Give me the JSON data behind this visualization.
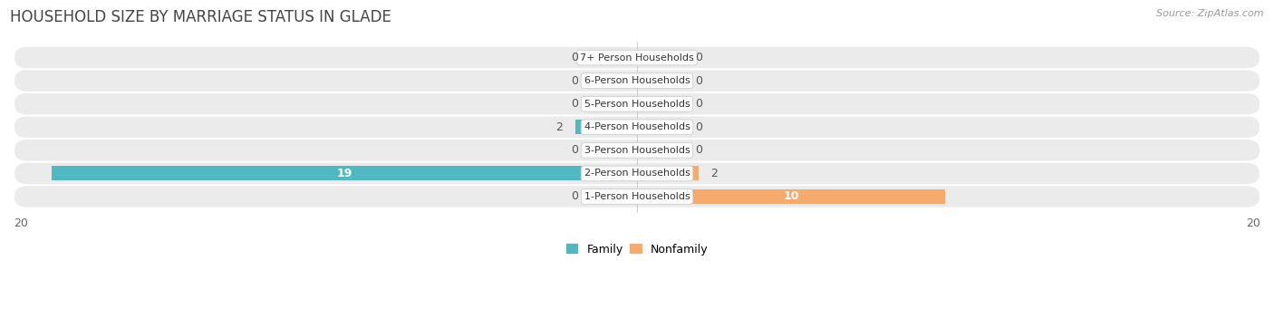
{
  "title": "HOUSEHOLD SIZE BY MARRIAGE STATUS IN GLADE",
  "source": "Source: ZipAtlas.com",
  "categories": [
    "7+ Person Households",
    "6-Person Households",
    "5-Person Households",
    "4-Person Households",
    "3-Person Households",
    "2-Person Households",
    "1-Person Households"
  ],
  "family_values": [
    0,
    0,
    0,
    2,
    0,
    19,
    0
  ],
  "nonfamily_values": [
    0,
    0,
    0,
    0,
    0,
    2,
    10
  ],
  "family_color": "#50B8C1",
  "nonfamily_color": "#F5AA6E",
  "row_bg_color": "#EBEBEB",
  "stub_size": 1.5,
  "xlim": 20,
  "title_fontsize": 12,
  "source_fontsize": 8,
  "tick_fontsize": 9,
  "cat_fontsize": 8,
  "val_fontsize": 9
}
